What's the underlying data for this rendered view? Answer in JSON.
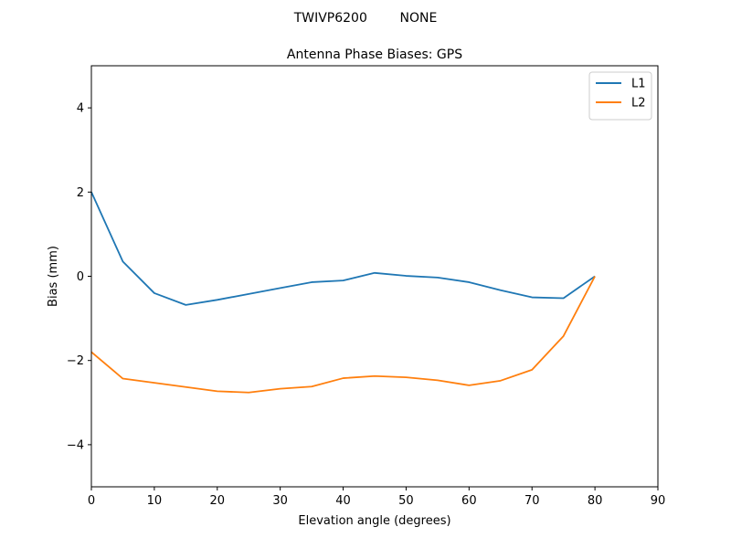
{
  "suptitle": "TWIVP6200        NONE",
  "chart_data": {
    "type": "line",
    "title": "Antenna Phase Biases: GPS",
    "xlabel": "Elevation angle (degrees)",
    "ylabel": "Bias (mm)",
    "xlim": [
      0,
      90
    ],
    "ylim": [
      -5,
      5
    ],
    "xticks": [
      0,
      10,
      20,
      30,
      40,
      50,
      60,
      70,
      80,
      90
    ],
    "xtick_labels": [
      "0",
      "10",
      "20",
      "30",
      "40",
      "50",
      "60",
      "70",
      "80",
      "90"
    ],
    "yticks": [
      -4,
      -2,
      0,
      2,
      4
    ],
    "ytick_labels": [
      "−4",
      "−2",
      "0",
      "2",
      "4"
    ],
    "grid": false,
    "legend_position": "top-right",
    "x": [
      0,
      5,
      10,
      15,
      20,
      25,
      30,
      35,
      40,
      45,
      50,
      55,
      60,
      65,
      70,
      75,
      80
    ],
    "series": [
      {
        "name": "L1",
        "color": "#1f77b4",
        "values": [
          2.0,
          0.35,
          -0.4,
          -0.68,
          -0.56,
          -0.42,
          -0.28,
          -0.14,
          -0.1,
          0.08,
          0.01,
          -0.03,
          -0.14,
          -0.33,
          -0.5,
          -0.52,
          0.0
        ]
      },
      {
        "name": "L2",
        "color": "#ff7f0e",
        "values": [
          -1.8,
          -2.43,
          -2.53,
          -2.63,
          -2.73,
          -2.76,
          -2.67,
          -2.62,
          -2.42,
          -2.37,
          -2.4,
          -2.47,
          -2.59,
          -2.48,
          -2.22,
          -1.42,
          0.0
        ]
      }
    ]
  }
}
